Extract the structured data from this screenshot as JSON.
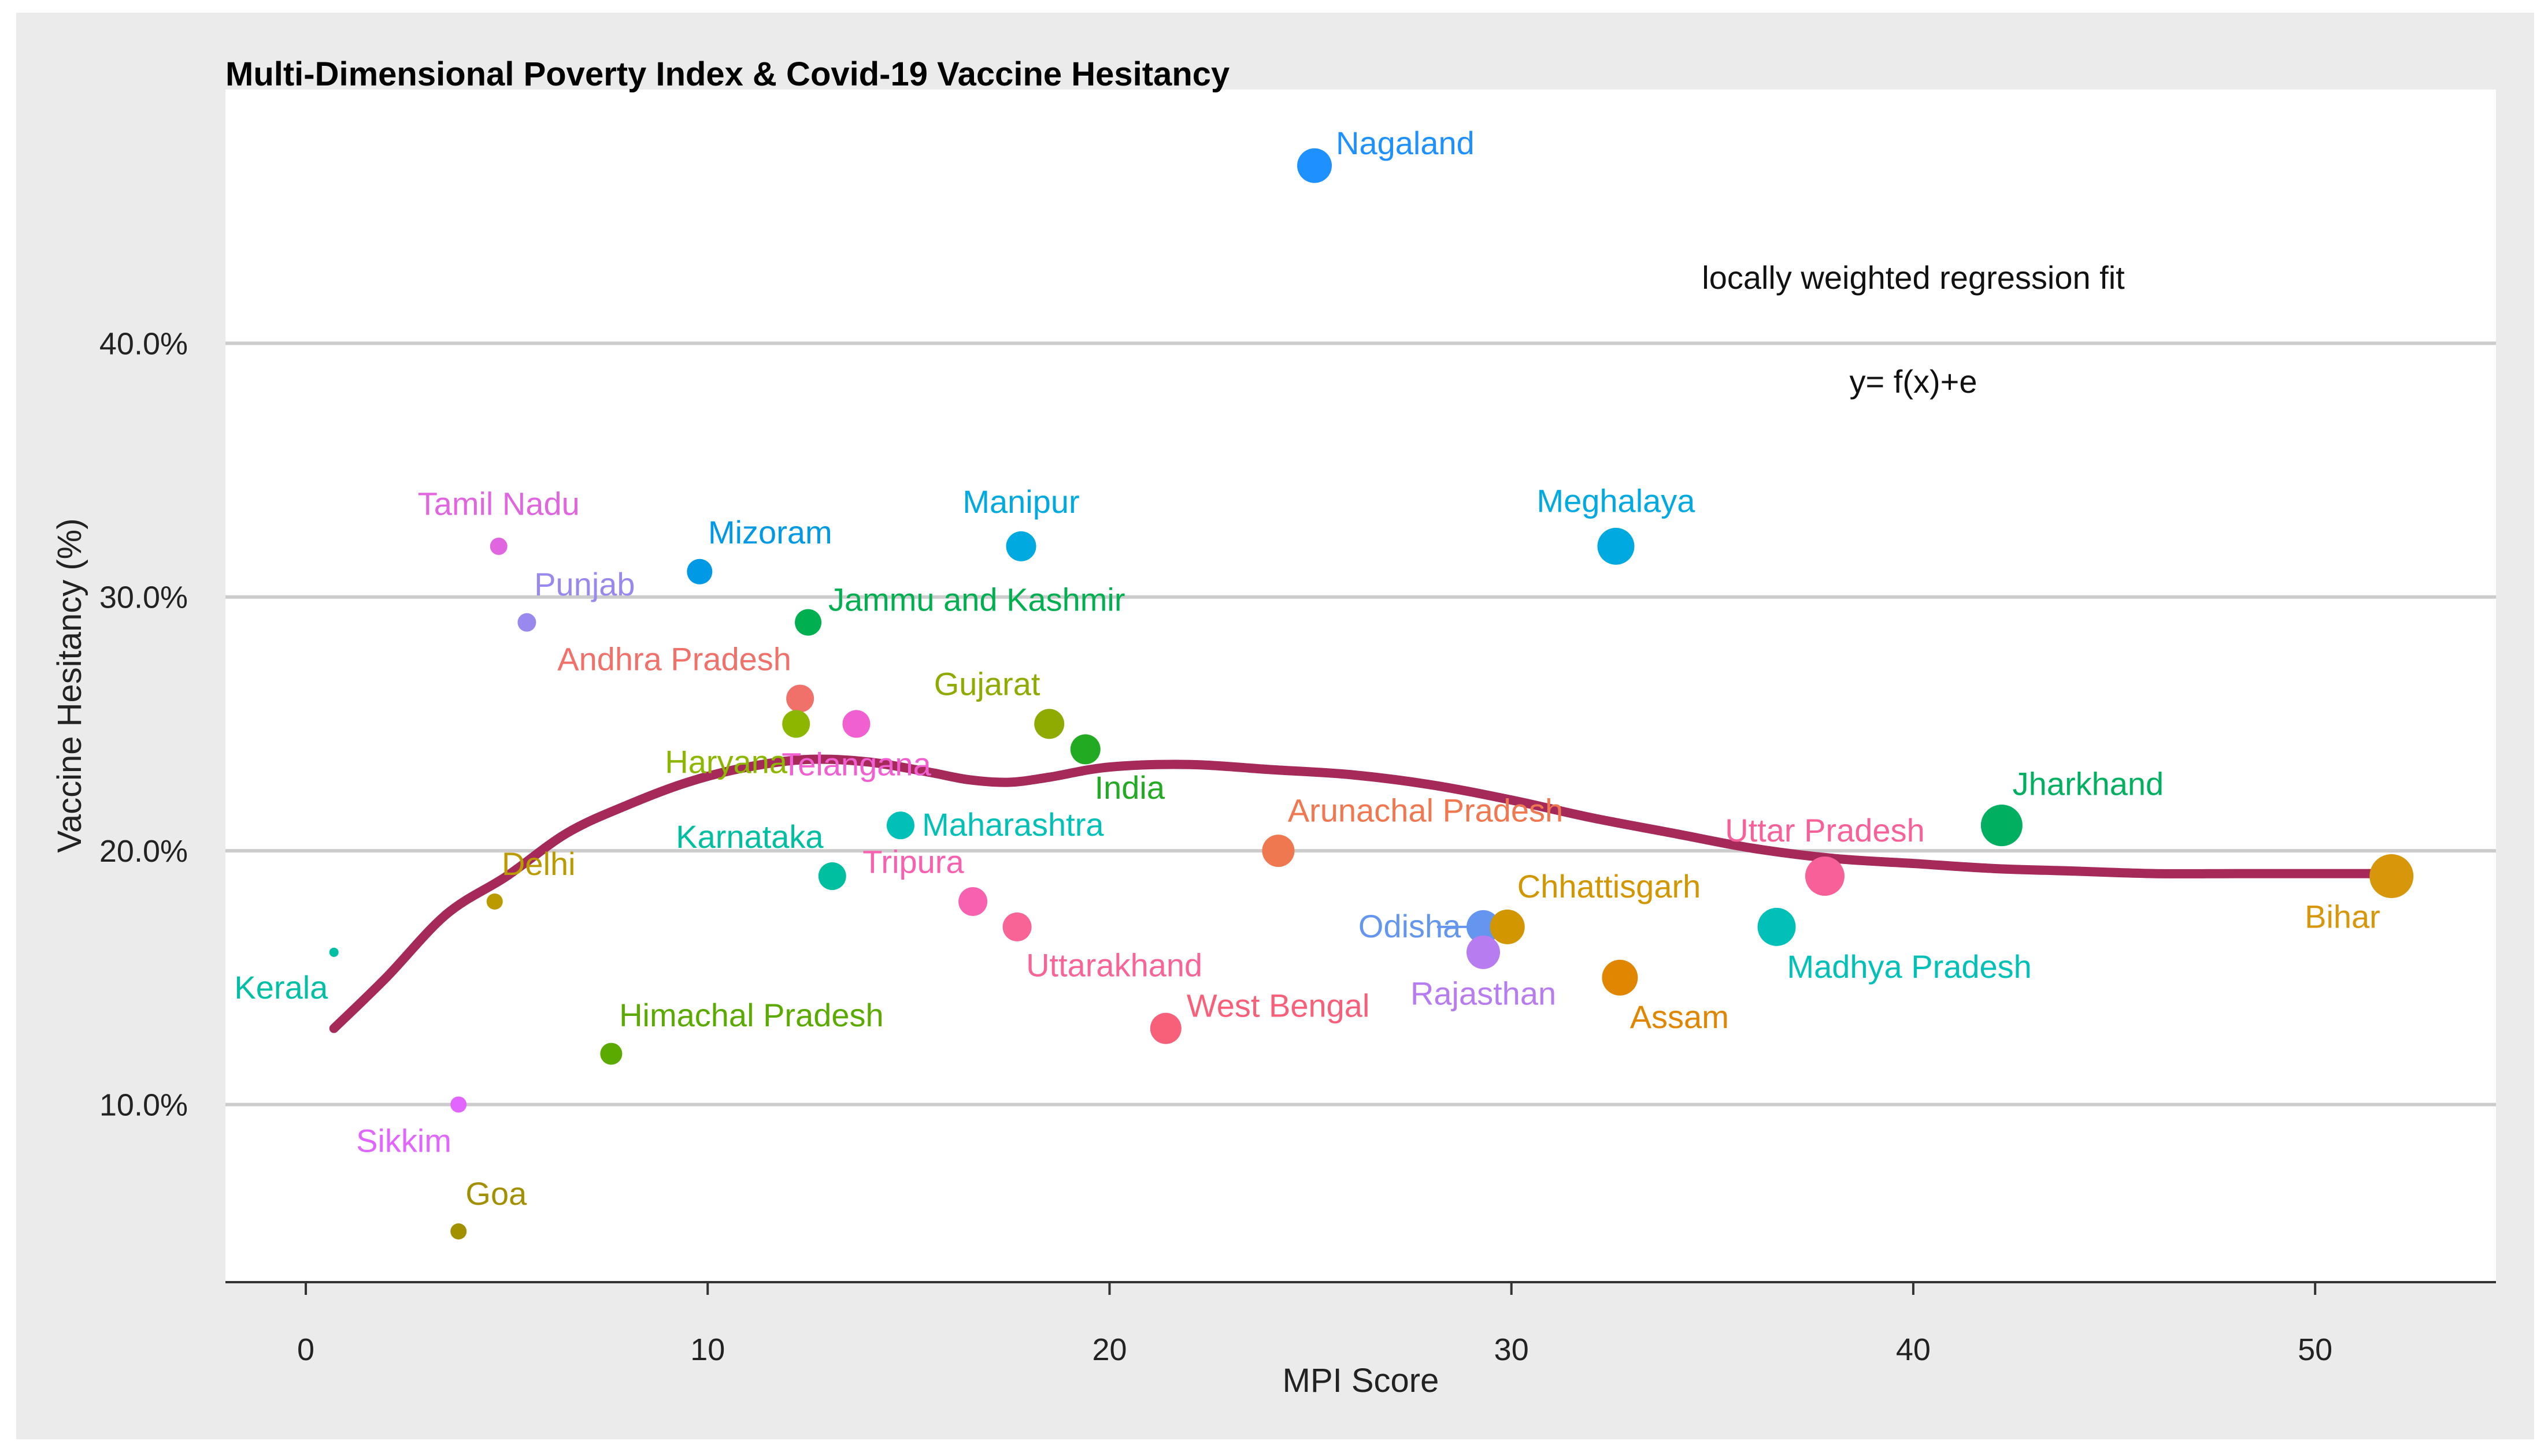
{
  "chart_data": {
    "type": "scatter",
    "title": "Multi-Dimensional Poverty Index & Covid-19 Vaccine Hesitancy",
    "xlabel": "MPI Score",
    "ylabel": "Vaccine Hesitancy (%)",
    "xlim": [
      -2,
      54.5
    ],
    "ylim": [
      3,
      50
    ],
    "x_ticks": [
      0,
      10,
      20,
      30,
      40,
      50
    ],
    "x_tick_labels": [
      "0",
      "10",
      "20",
      "30",
      "40",
      "50"
    ],
    "y_ticks": [
      10,
      20,
      30,
      40
    ],
    "y_tick_labels": [
      "10.0%",
      "20.0%",
      "30.0%",
      "40.0%"
    ],
    "annotations": [
      "locally weighted regression fit",
      "y= f(x)+e"
    ],
    "trend_color": "#A52A5A",
    "trend": [
      {
        "x": 0.7,
        "y": 13.0
      },
      {
        "x": 2,
        "y": 15.0
      },
      {
        "x": 3.5,
        "y": 17.5
      },
      {
        "x": 5,
        "y": 19.0
      },
      {
        "x": 6.5,
        "y": 20.7
      },
      {
        "x": 8,
        "y": 21.8
      },
      {
        "x": 9.5,
        "y": 22.7
      },
      {
        "x": 11,
        "y": 23.3
      },
      {
        "x": 12.5,
        "y": 23.6
      },
      {
        "x": 14,
        "y": 23.5
      },
      {
        "x": 15.5,
        "y": 23.1
      },
      {
        "x": 16.5,
        "y": 22.8
      },
      {
        "x": 17.5,
        "y": 22.7
      },
      {
        "x": 18.5,
        "y": 22.9
      },
      {
        "x": 20,
        "y": 23.3
      },
      {
        "x": 22,
        "y": 23.4
      },
      {
        "x": 24,
        "y": 23.2
      },
      {
        "x": 26,
        "y": 23.0
      },
      {
        "x": 28,
        "y": 22.6
      },
      {
        "x": 30,
        "y": 22.0
      },
      {
        "x": 32,
        "y": 21.3
      },
      {
        "x": 34,
        "y": 20.7
      },
      {
        "x": 36,
        "y": 20.1
      },
      {
        "x": 38,
        "y": 19.7
      },
      {
        "x": 40,
        "y": 19.5
      },
      {
        "x": 42,
        "y": 19.3
      },
      {
        "x": 44,
        "y": 19.2
      },
      {
        "x": 46,
        "y": 19.1
      },
      {
        "x": 48,
        "y": 19.1
      },
      {
        "x": 50,
        "y": 19.1
      },
      {
        "x": 51.8,
        "y": 19.1
      }
    ],
    "points": [
      {
        "name": "Nagaland",
        "x": 25.1,
        "y": 47,
        "size": 30,
        "color": "#1E90FF",
        "label_pos": "right-up"
      },
      {
        "name": "Meghalaya",
        "x": 32.6,
        "y": 32,
        "size": 32,
        "color": "#00A9E0",
        "label_pos": "above"
      },
      {
        "name": "Manipur",
        "x": 17.8,
        "y": 32,
        "size": 26,
        "color": "#00A9E0",
        "label_pos": "above"
      },
      {
        "name": "Mizoram",
        "x": 9.8,
        "y": 31,
        "size": 22,
        "color": "#0099E6",
        "label_pos": "above-right"
      },
      {
        "name": "Tamil Nadu",
        "x": 4.8,
        "y": 32,
        "size": 15,
        "color": "#E066E0",
        "label_pos": "above"
      },
      {
        "name": "Punjab",
        "x": 5.5,
        "y": 29,
        "size": 16,
        "color": "#9988EE",
        "label_pos": "above-right"
      },
      {
        "name": "Jammu and Kashmir",
        "x": 12.5,
        "y": 29,
        "size": 23,
        "color": "#00B050",
        "label_pos": "right-up"
      },
      {
        "name": "Andhra Pradesh",
        "x": 12.3,
        "y": 26,
        "size": 24,
        "color": "#F0706A",
        "label_pos": "above-left"
      },
      {
        "name": "Haryana",
        "x": 12.2,
        "y": 25,
        "size": 24,
        "color": "#8DB600",
        "label_pos": "below-left"
      },
      {
        "name": "Telangana",
        "x": 13.7,
        "y": 25,
        "size": 24,
        "color": "#F060D0",
        "label_pos": "below"
      },
      {
        "name": "Gujarat",
        "x": 18.5,
        "y": 25,
        "size": 26,
        "color": "#8FAA00",
        "label_pos": "above-left"
      },
      {
        "name": "India",
        "x": 19.4,
        "y": 24,
        "size": 26,
        "color": "#22AA22",
        "label_pos": "below-right"
      },
      {
        "name": "Maharashtra",
        "x": 14.8,
        "y": 21,
        "size": 24,
        "color": "#00C0B8",
        "label_pos": "right"
      },
      {
        "name": "Karnataka",
        "x": 13.1,
        "y": 19,
        "size": 24,
        "color": "#00BFA0",
        "label_pos": "above-left"
      },
      {
        "name": "Tripura",
        "x": 16.6,
        "y": 18,
        "size": 25,
        "color": "#F860B0",
        "label_pos": "above-left"
      },
      {
        "name": "Uttarakhand",
        "x": 17.7,
        "y": 17,
        "size": 25,
        "color": "#F86495",
        "label_pos": "below-right"
      },
      {
        "name": "Arunachal Pradesh",
        "x": 24.2,
        "y": 20,
        "size": 28,
        "color": "#F07850",
        "label_pos": "above-right"
      },
      {
        "name": "West Bengal",
        "x": 21.4,
        "y": 13,
        "size": 27,
        "color": "#F8607A",
        "label_pos": "right-up"
      },
      {
        "name": "Delhi",
        "x": 4.7,
        "y": 18,
        "size": 14,
        "color": "#BB9A00",
        "label_pos": "above-right"
      },
      {
        "name": "Kerala",
        "x": 0.7,
        "y": 16,
        "size": 8,
        "color": "#00BFA5",
        "label_pos": "below-left"
      },
      {
        "name": "Himachal Pradesh",
        "x": 7.6,
        "y": 12,
        "size": 19,
        "color": "#5AAA00",
        "label_pos": "above-right"
      },
      {
        "name": "Sikkim",
        "x": 3.8,
        "y": 10,
        "size": 14,
        "color": "#E066FF",
        "label_pos": "below-left"
      },
      {
        "name": "Goa",
        "x": 3.8,
        "y": 5,
        "size": 14,
        "color": "#A39000",
        "label_pos": "above-right"
      },
      {
        "name": "Odisha",
        "x": 29.3,
        "y": 17,
        "size": 29,
        "color": "#6496F0",
        "label_pos": "left"
      },
      {
        "name": "Chhattisgarh",
        "x": 29.9,
        "y": 17,
        "size": 30,
        "color": "#D29700",
        "label_pos": "above-right"
      },
      {
        "name": "Rajasthan",
        "x": 29.3,
        "y": 16,
        "size": 29,
        "color": "#B77CF0",
        "label_pos": "below"
      },
      {
        "name": "Assam",
        "x": 32.7,
        "y": 15,
        "size": 31,
        "color": "#E08600",
        "label_pos": "below-right"
      },
      {
        "name": "Madhya Pradesh",
        "x": 36.6,
        "y": 17,
        "size": 33,
        "color": "#00C0B8",
        "label_pos": "below-right"
      },
      {
        "name": "Uttar Pradesh",
        "x": 37.8,
        "y": 19,
        "size": 34,
        "color": "#F8609A",
        "label_pos": "above"
      },
      {
        "name": "Jharkhand",
        "x": 42.2,
        "y": 21,
        "size": 36,
        "color": "#00B060",
        "label_pos": "above-right"
      },
      {
        "name": "Bihar",
        "x": 51.9,
        "y": 19,
        "size": 38,
        "color": "#D8960A",
        "label_pos": "below-left"
      }
    ]
  }
}
